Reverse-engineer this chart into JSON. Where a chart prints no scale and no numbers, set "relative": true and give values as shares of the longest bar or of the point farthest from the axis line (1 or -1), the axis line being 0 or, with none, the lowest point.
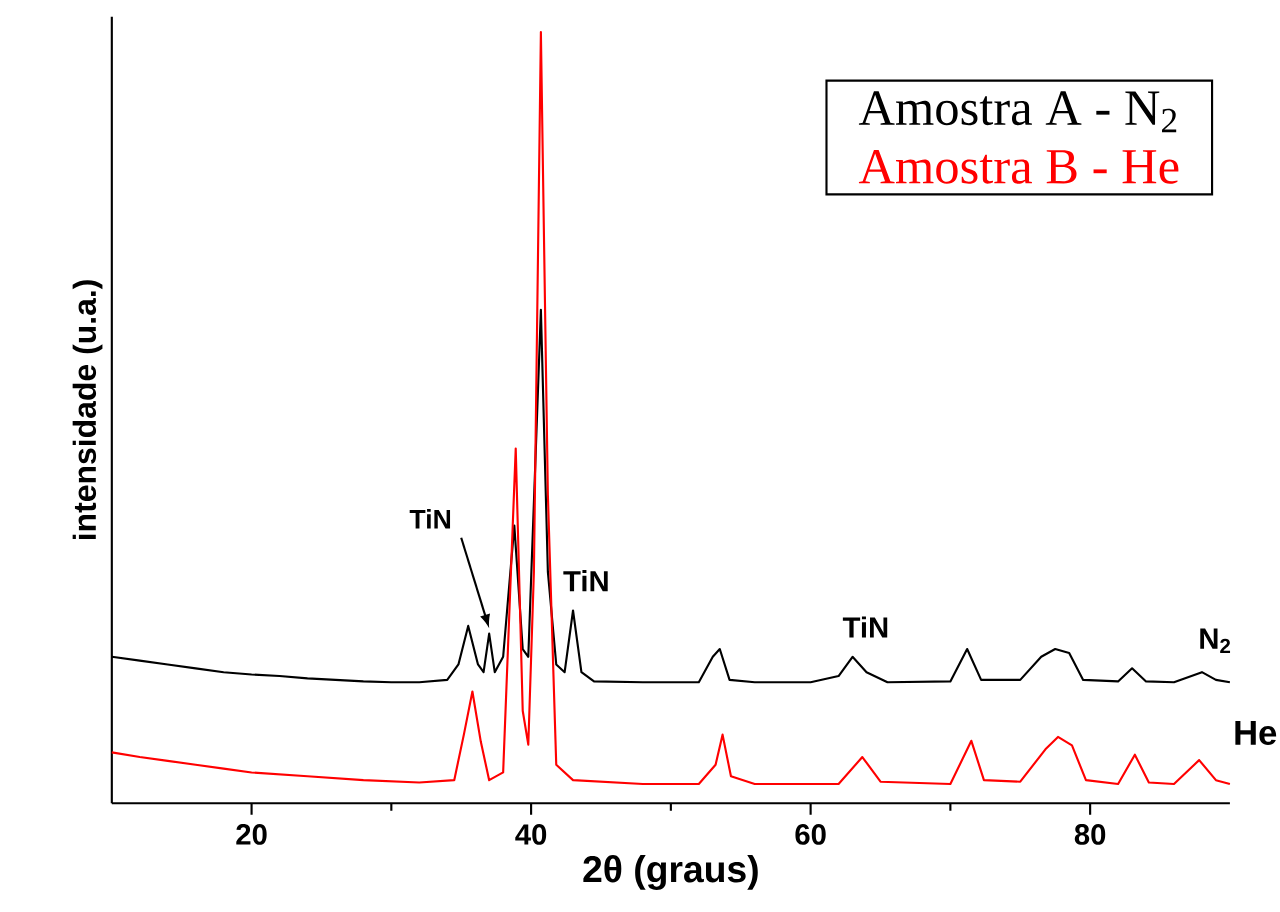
{
  "chart_data": {
    "type": "line",
    "relative": true,
    "xlabel": "2θ (graus)",
    "ylabel": "intensidade (u.a.)",
    "xlim": [
      10,
      90
    ],
    "xticks": [
      20,
      40,
      60,
      80
    ],
    "legend": "top right",
    "marker": "none",
    "line_style": "solid",
    "annotations": [
      {
        "text": "TiN",
        "x": 37,
        "y": 0.22
      },
      {
        "text": "TiN",
        "x": 43,
        "y": 0.25
      },
      {
        "text": "TiN",
        "x": 63,
        "y": 0.19
      },
      {
        "text": "N$_{2}$",
        "x": 88,
        "y": 0.17
      },
      "He"
    ],
    "series": [
      {
        "name": "Amostra A - N$_{2}$",
        "color": "#000000",
        "x": [
          10,
          12,
          14,
          16,
          18,
          20,
          22,
          24,
          26,
          28,
          30,
          32,
          34,
          34.8,
          35.5,
          36.2,
          36.6,
          37,
          37.4,
          38,
          38.8,
          39.4,
          39.8,
          40.7,
          41.2,
          41.8,
          42.4,
          43,
          43.6,
          44.5,
          48,
          52,
          53,
          53.5,
          54.2,
          56,
          60,
          62,
          63,
          64,
          65.5,
          70,
          71.2,
          72.2,
          75,
          76.5,
          77.5,
          78.5,
          79.5,
          82,
          83,
          84,
          86,
          88,
          89,
          90
        ],
        "values": [
          0.19,
          0.185,
          0.18,
          0.175,
          0.17,
          0.167,
          0.165,
          0.162,
          0.16,
          0.158,
          0.157,
          0.157,
          0.16,
          0.18,
          0.23,
          0.18,
          0.17,
          0.22,
          0.17,
          0.19,
          0.36,
          0.2,
          0.19,
          0.64,
          0.3,
          0.18,
          0.17,
          0.25,
          0.17,
          0.158,
          0.157,
          0.157,
          0.19,
          0.2,
          0.16,
          0.157,
          0.157,
          0.165,
          0.19,
          0.17,
          0.157,
          0.158,
          0.2,
          0.16,
          0.16,
          0.19,
          0.2,
          0.195,
          0.16,
          0.158,
          0.175,
          0.158,
          0.157,
          0.17,
          0.16,
          0.157
        ]
      },
      {
        "name": "Amostra B - He",
        "color": "#ff0000",
        "x": [
          10,
          12,
          14,
          16,
          18,
          20,
          24,
          28,
          32,
          34.5,
          35.2,
          35.8,
          36.4,
          37,
          38,
          38.9,
          39.4,
          39.8,
          40.2,
          40.7,
          41.2,
          41.8,
          43,
          48,
          52,
          53.2,
          53.7,
          54.3,
          56,
          62,
          63.7,
          65,
          70,
          71.5,
          72.4,
          75,
          76.8,
          77.7,
          78.7,
          79.7,
          82,
          83.2,
          84.2,
          86,
          87.8,
          89,
          90
        ],
        "values": [
          0.066,
          0.06,
          0.055,
          0.05,
          0.045,
          0.04,
          0.035,
          0.03,
          0.027,
          0.03,
          0.09,
          0.145,
          0.08,
          0.03,
          0.04,
          0.46,
          0.12,
          0.076,
          0.3,
          1.0,
          0.4,
          0.05,
          0.03,
          0.025,
          0.025,
          0.05,
          0.089,
          0.035,
          0.025,
          0.025,
          0.06,
          0.028,
          0.025,
          0.081,
          0.03,
          0.028,
          0.07,
          0.086,
          0.075,
          0.03,
          0.025,
          0.063,
          0.027,
          0.025,
          0.056,
          0.03,
          0.025
        ]
      }
    ]
  }
}
